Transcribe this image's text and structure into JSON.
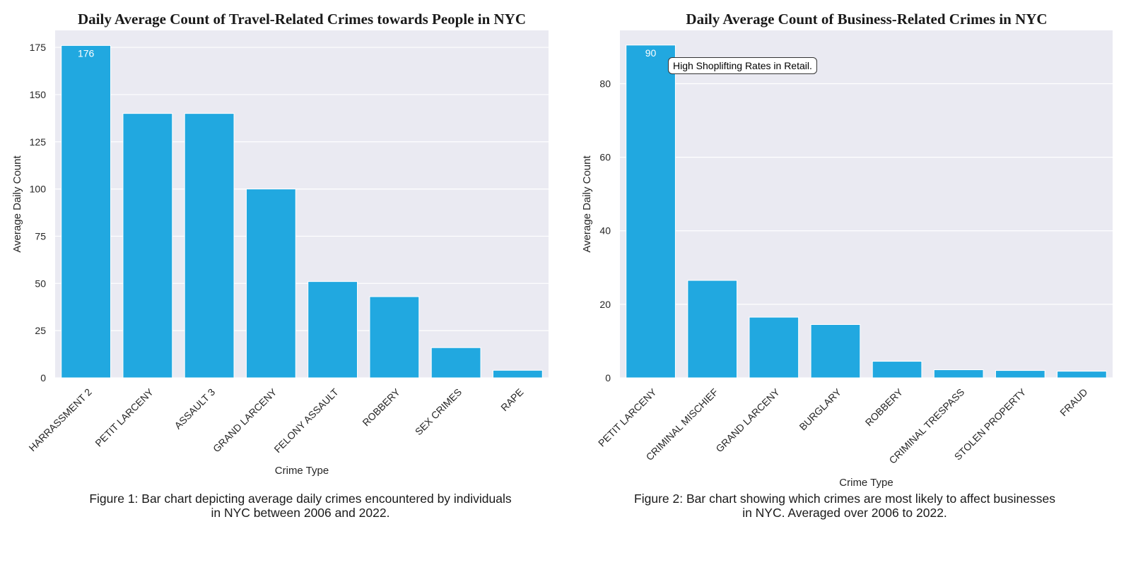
{
  "chart_data": [
    {
      "type": "bar",
      "title": "Daily Average Count of Travel-Related Crimes towards People in NYC",
      "xlabel": "Crime Type",
      "ylabel": "Average Daily Count",
      "categories": [
        "HARRASSMENT 2",
        "PETIT LARCENY",
        "ASSAULT 3",
        "GRAND LARCENY",
        "FELONY ASSAULT",
        "ROBBERY",
        "SEX CRIMES",
        "RAPE"
      ],
      "values": [
        176,
        140,
        140,
        100,
        51,
        43,
        16,
        4
      ],
      "ylim": [
        0,
        184
      ],
      "yticks": [
        0,
        25,
        50,
        75,
        100,
        125,
        150,
        175
      ],
      "data_labels": [
        {
          "index": 0,
          "text": "176"
        }
      ],
      "grid": true,
      "color": "#21a8e0",
      "background": "#eaeaf2",
      "caption": "Figure 1: Bar chart depicting average daily crimes encountered by individuals\nin NYC between 2006 and 2022."
    },
    {
      "type": "bar",
      "title": "Daily Average Count of Business-Related Crimes in NYC",
      "xlabel": "Crime Type",
      "ylabel": "Average Daily Count",
      "categories": [
        "PETIT LARCENY",
        "CRIMINAL MISCHIEF",
        "GRAND LARCENY",
        "BURGLARY",
        "ROBBERY",
        "CRIMINAL TRESPASS",
        "STOLEN PROPERTY",
        "FRAUD"
      ],
      "values": [
        90.5,
        26.5,
        16.5,
        14.5,
        4.5,
        2.2,
        2.0,
        1.8
      ],
      "ylim": [
        0,
        94.5
      ],
      "yticks": [
        0,
        20,
        40,
        60,
        80
      ],
      "data_labels": [
        {
          "index": 0,
          "text": "90"
        }
      ],
      "annotation": "High Shoplifting Rates in Retail.",
      "grid": true,
      "color": "#21a8e0",
      "background": "#eaeaf2",
      "caption": "Figure 2: Bar chart showing which crimes are most likely to affect businesses\nin NYC. Averaged over 2006 to 2022."
    }
  ]
}
